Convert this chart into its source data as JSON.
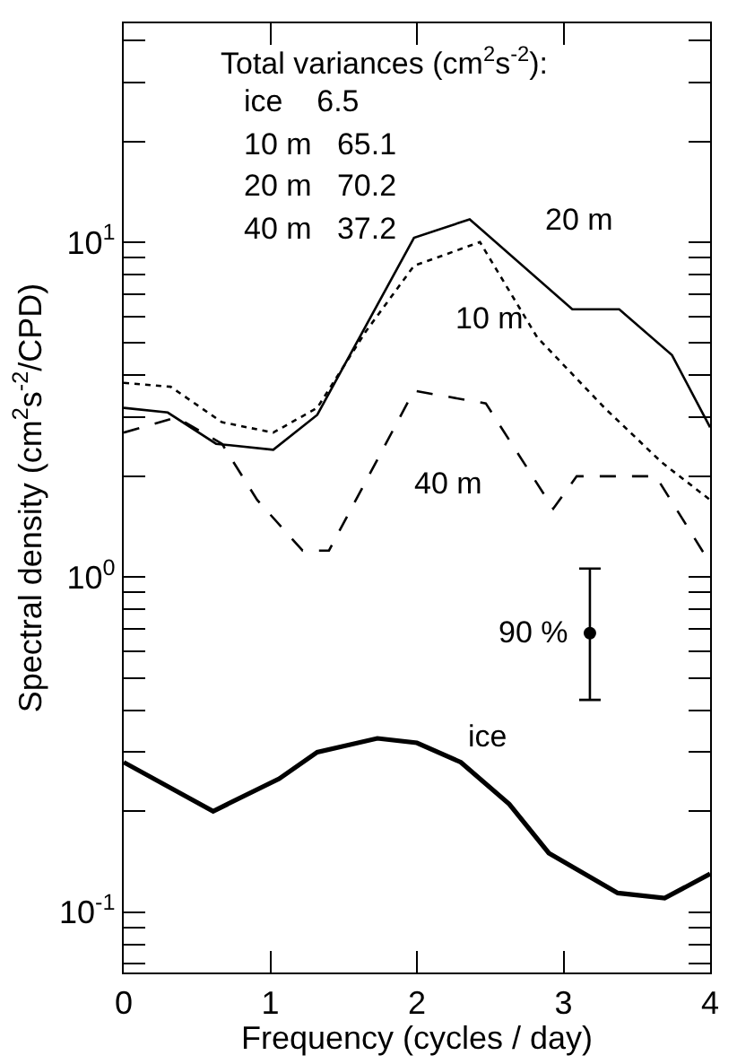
{
  "chart_data": {
    "type": "line",
    "xlabel": "Frequency (cycles / day)",
    "ylabel": "Spectral density (cm$^{2}$s$^{-2}$/CPD)",
    "xlim": [
      0,
      4
    ],
    "xticks": [
      0,
      1,
      2,
      3,
      4
    ],
    "ylim": [
      0.066,
      45
    ],
    "log": true,
    "yticks": [
      {
        "value": 0.07,
        "label": null
      },
      {
        "value": 0.08,
        "label": null
      },
      {
        "value": 0.09,
        "label": null
      },
      {
        "value": 0.1,
        "label": "10$^{-1}$"
      },
      {
        "value": 0.2,
        "label": null
      },
      {
        "value": 0.3,
        "label": null
      },
      {
        "value": 0.4,
        "label": null
      },
      {
        "value": 0.5,
        "label": null
      },
      {
        "value": 0.6,
        "label": null
      },
      {
        "value": 0.7,
        "label": null
      },
      {
        "value": 0.8,
        "label": null
      },
      {
        "value": 0.9,
        "label": null
      },
      {
        "value": 1,
        "label": "10$^{0}$"
      },
      {
        "value": 2,
        "label": null
      },
      {
        "value": 3,
        "label": null
      },
      {
        "value": 4,
        "label": null
      },
      {
        "value": 5,
        "label": null
      },
      {
        "value": 6,
        "label": null
      },
      {
        "value": 7,
        "label": null
      },
      {
        "value": 8,
        "label": null
      },
      {
        "value": 9,
        "label": null
      },
      {
        "value": 10,
        "label": "10$^{1}$"
      },
      {
        "value": 20,
        "label": null
      },
      {
        "value": 30,
        "label": null
      },
      {
        "value": 40,
        "label": null
      }
    ],
    "marker": "none",
    "series": [
      {
        "name": "20 m",
        "color": "#000000",
        "line_style": "solid",
        "x": [
          0,
          0.3,
          0.63,
          1.02,
          1.32,
          1.98,
          2.36,
          3.06,
          3.38,
          3.74,
          4.0
        ],
        "values": [
          3.2,
          3.1,
          2.5,
          2.4,
          3.05,
          10.3,
          11.7,
          6.3,
          6.3,
          4.6,
          2.8
        ]
      },
      {
        "name": "10 m",
        "color": "#000000",
        "line_style": "dotted",
        "x": [
          0,
          0.32,
          0.67,
          1.02,
          1.32,
          1.65,
          1.98,
          2.43,
          2.82,
          3.28,
          3.67,
          4.0
        ],
        "values": [
          3.8,
          3.7,
          2.9,
          2.7,
          3.2,
          5.4,
          8.5,
          10,
          5.2,
          3.2,
          2.2,
          1.7
        ]
      },
      {
        "name": "40 m",
        "color": "#000000",
        "line_style": "dashed",
        "x": [
          0,
          0.36,
          0.67,
          0.91,
          1.22,
          1.4,
          1.98,
          2.47,
          2.93,
          3.09,
          3.63,
          4.0
        ],
        "values": [
          2.7,
          3.0,
          2.5,
          1.7,
          1.2,
          1.2,
          3.6,
          3.3,
          1.6,
          2.0,
          2.0,
          1.1
        ]
      },
      {
        "name": "ice",
        "color": "#000000",
        "line_style": "solid",
        "x": [
          0,
          0.61,
          1.06,
          1.32,
          1.73,
          2.0,
          2.3,
          2.63,
          2.9,
          3.37,
          3.69,
          4.0
        ],
        "values": [
          0.28,
          0.2,
          0.25,
          0.3,
          0.33,
          0.32,
          0.28,
          0.21,
          0.15,
          0.114,
          0.11,
          0.13
        ]
      },
      {
        "type": "scatter",
        "color": "#000000",
        "marker": "circle",
        "x": [
          3.18
        ],
        "values": [
          0.68
        ],
        "errors": [
          [
            0.43,
            1.06
          ]
        ]
      }
    ],
    "annotations": [
      "Total variances (cm$^{2}$s$^{-2}$):",
      "ice   6.5",
      "10 m  65.1",
      "20 m  70.2",
      "40 m  37.2",
      {
        "text": "90 %",
        "x": 3.18,
        "y": 0.68
      }
    ]
  }
}
